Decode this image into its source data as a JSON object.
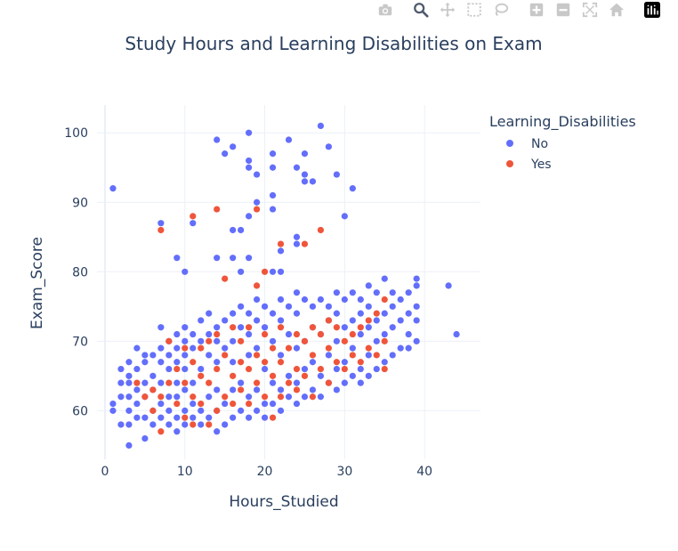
{
  "toolbar": {
    "buttons": [
      {
        "name": "camera-icon"
      },
      {
        "name": "zoom-icon"
      },
      {
        "name": "pan-icon"
      },
      {
        "name": "box-select-icon"
      },
      {
        "name": "lasso-select-icon"
      },
      {
        "name": "zoom-in-icon"
      },
      {
        "name": "zoom-out-icon"
      },
      {
        "name": "autoscale-icon"
      },
      {
        "name": "reset-axes-icon"
      },
      {
        "name": "plotly-logo-icon"
      }
    ]
  },
  "chart_data": {
    "type": "scatter",
    "title": "Study Hours and Learning Disabilities on Exam",
    "xlabel": "Hours_Studied",
    "ylabel": "Exam_Score",
    "xlim": [
      -1,
      47
    ],
    "ylim": [
      53,
      104
    ],
    "xticks": [
      0,
      10,
      20,
      30,
      40
    ],
    "yticks": [
      60,
      70,
      80,
      90,
      100
    ],
    "grid": true,
    "legend": {
      "title": "Learning_Disabilities",
      "placement": "right"
    },
    "series": [
      {
        "name": "No",
        "color": "#636efa",
        "points": [
          [
            1,
            92
          ],
          [
            1,
            61
          ],
          [
            1,
            60
          ],
          [
            2,
            58
          ],
          [
            2,
            62
          ],
          [
            2,
            64
          ],
          [
            2,
            66
          ],
          [
            3,
            55
          ],
          [
            3,
            58
          ],
          [
            3,
            60
          ],
          [
            3,
            62
          ],
          [
            3,
            64
          ],
          [
            3,
            65
          ],
          [
            3,
            67
          ],
          [
            4,
            59
          ],
          [
            4,
            61
          ],
          [
            4,
            63
          ],
          [
            4,
            66
          ],
          [
            4,
            69
          ],
          [
            5,
            56
          ],
          [
            5,
            59
          ],
          [
            5,
            62
          ],
          [
            5,
            64
          ],
          [
            5,
            67
          ],
          [
            5,
            68
          ],
          [
            6,
            58
          ],
          [
            6,
            60
          ],
          [
            6,
            63
          ],
          [
            6,
            65
          ],
          [
            6,
            68
          ],
          [
            7,
            59
          ],
          [
            7,
            61
          ],
          [
            7,
            64
          ],
          [
            7,
            67
          ],
          [
            7,
            69
          ],
          [
            7,
            72
          ],
          [
            7,
            87
          ],
          [
            8,
            58
          ],
          [
            8,
            60
          ],
          [
            8,
            62
          ],
          [
            8,
            66
          ],
          [
            8,
            68
          ],
          [
            8,
            70
          ],
          [
            9,
            57
          ],
          [
            9,
            59
          ],
          [
            9,
            62
          ],
          [
            9,
            64
          ],
          [
            9,
            67
          ],
          [
            9,
            69
          ],
          [
            9,
            71
          ],
          [
            9,
            82
          ],
          [
            10,
            58
          ],
          [
            10,
            60
          ],
          [
            10,
            63
          ],
          [
            10,
            66
          ],
          [
            10,
            68
          ],
          [
            10,
            70
          ],
          [
            10,
            72
          ],
          [
            10,
            80
          ],
          [
            11,
            59
          ],
          [
            11,
            61
          ],
          [
            11,
            64
          ],
          [
            11,
            69
          ],
          [
            11,
            71
          ],
          [
            11,
            87
          ],
          [
            12,
            58
          ],
          [
            12,
            60
          ],
          [
            12,
            66
          ],
          [
            12,
            70
          ],
          [
            12,
            73
          ],
          [
            13,
            59
          ],
          [
            13,
            62
          ],
          [
            13,
            68
          ],
          [
            13,
            71
          ],
          [
            13,
            74
          ],
          [
            14,
            57
          ],
          [
            14,
            60
          ],
          [
            14,
            63
          ],
          [
            14,
            67
          ],
          [
            14,
            70
          ],
          [
            14,
            72
          ],
          [
            14,
            99
          ],
          [
            14,
            82
          ],
          [
            15,
            58
          ],
          [
            15,
            61
          ],
          [
            15,
            69
          ],
          [
            15,
            73
          ],
          [
            15,
            97
          ],
          [
            16,
            59
          ],
          [
            16,
            63
          ],
          [
            16,
            67
          ],
          [
            16,
            70
          ],
          [
            16,
            74
          ],
          [
            16,
            98
          ],
          [
            16,
            86
          ],
          [
            16,
            82
          ],
          [
            17,
            60
          ],
          [
            17,
            64
          ],
          [
            17,
            72
          ],
          [
            17,
            75
          ],
          [
            17,
            86
          ],
          [
            17,
            80
          ],
          [
            18,
            59
          ],
          [
            18,
            62
          ],
          [
            18,
            68
          ],
          [
            18,
            71
          ],
          [
            18,
            74
          ],
          [
            18,
            100
          ],
          [
            18,
            96
          ],
          [
            18,
            95
          ],
          [
            18,
            88
          ],
          [
            18,
            82
          ],
          [
            19,
            60
          ],
          [
            19,
            63
          ],
          [
            19,
            69
          ],
          [
            19,
            73
          ],
          [
            19,
            76
          ],
          [
            19,
            94
          ],
          [
            19,
            90
          ],
          [
            20,
            59
          ],
          [
            20,
            61
          ],
          [
            20,
            66
          ],
          [
            20,
            72
          ],
          [
            20,
            75
          ],
          [
            21,
            61
          ],
          [
            21,
            64
          ],
          [
            21,
            70
          ],
          [
            21,
            74
          ],
          [
            21,
            97
          ],
          [
            21,
            95
          ],
          [
            21,
            91
          ],
          [
            21,
            89
          ],
          [
            21,
            80
          ],
          [
            22,
            60
          ],
          [
            22,
            63
          ],
          [
            22,
            68
          ],
          [
            22,
            73
          ],
          [
            22,
            76
          ],
          [
            22,
            83
          ],
          [
            22,
            80
          ],
          [
            23,
            62
          ],
          [
            23,
            65
          ],
          [
            23,
            71
          ],
          [
            23,
            75
          ],
          [
            23,
            99
          ],
          [
            24,
            61
          ],
          [
            24,
            64
          ],
          [
            24,
            69
          ],
          [
            24,
            74
          ],
          [
            24,
            77
          ],
          [
            24,
            95
          ],
          [
            24,
            85
          ],
          [
            24,
            84
          ],
          [
            25,
            62
          ],
          [
            25,
            66
          ],
          [
            25,
            70
          ],
          [
            25,
            76
          ],
          [
            25,
            97
          ],
          [
            25,
            94
          ],
          [
            25,
            93
          ],
          [
            26,
            63
          ],
          [
            26,
            67
          ],
          [
            26,
            72
          ],
          [
            26,
            75
          ],
          [
            26,
            93
          ],
          [
            27,
            62
          ],
          [
            27,
            65
          ],
          [
            27,
            71
          ],
          [
            27,
            76
          ],
          [
            27,
            101
          ],
          [
            28,
            64
          ],
          [
            28,
            68
          ],
          [
            28,
            73
          ],
          [
            28,
            75
          ],
          [
            28,
            98
          ],
          [
            29,
            63
          ],
          [
            29,
            66
          ],
          [
            29,
            70
          ],
          [
            29,
            74
          ],
          [
            29,
            77
          ],
          [
            29,
            94
          ],
          [
            30,
            64
          ],
          [
            30,
            67
          ],
          [
            30,
            72
          ],
          [
            30,
            76
          ],
          [
            30,
            88
          ],
          [
            31,
            65
          ],
          [
            31,
            69
          ],
          [
            31,
            73
          ],
          [
            31,
            77
          ],
          [
            31,
            92
          ],
          [
            32,
            64
          ],
          [
            32,
            66
          ],
          [
            32,
            71
          ],
          [
            32,
            74
          ],
          [
            32,
            76
          ],
          [
            33,
            65
          ],
          [
            33,
            68
          ],
          [
            33,
            72
          ],
          [
            33,
            75
          ],
          [
            33,
            78
          ],
          [
            34,
            66
          ],
          [
            34,
            70
          ],
          [
            34,
            73
          ],
          [
            34,
            77
          ],
          [
            35,
            67
          ],
          [
            35,
            71
          ],
          [
            35,
            74
          ],
          [
            35,
            79
          ],
          [
            36,
            68
          ],
          [
            36,
            72
          ],
          [
            36,
            75
          ],
          [
            36,
            77
          ],
          [
            37,
            69
          ],
          [
            37,
            73
          ],
          [
            37,
            76
          ],
          [
            38,
            69
          ],
          [
            38,
            71
          ],
          [
            38,
            74
          ],
          [
            38,
            77
          ],
          [
            39,
            70
          ],
          [
            39,
            73
          ],
          [
            39,
            75
          ],
          [
            39,
            78
          ],
          [
            39,
            79
          ],
          [
            43,
            78
          ],
          [
            44,
            71
          ]
        ]
      },
      {
        "name": "Yes",
        "color": "#ef553b",
        "points": [
          [
            4,
            64
          ],
          [
            5,
            62
          ],
          [
            6,
            60
          ],
          [
            6,
            63
          ],
          [
            7,
            57
          ],
          [
            7,
            62
          ],
          [
            7,
            86
          ],
          [
            8,
            64
          ],
          [
            8,
            70
          ],
          [
            9,
            61
          ],
          [
            9,
            66
          ],
          [
            10,
            59
          ],
          [
            10,
            64
          ],
          [
            10,
            69
          ],
          [
            11,
            58
          ],
          [
            11,
            62
          ],
          [
            11,
            67
          ],
          [
            11,
            88
          ],
          [
            12,
            61
          ],
          [
            12,
            65
          ],
          [
            12,
            69
          ],
          [
            13,
            58
          ],
          [
            13,
            64
          ],
          [
            13,
            70
          ],
          [
            14,
            60
          ],
          [
            14,
            66
          ],
          [
            14,
            71
          ],
          [
            14,
            89
          ],
          [
            15,
            62
          ],
          [
            15,
            68
          ],
          [
            15,
            79
          ],
          [
            16,
            61
          ],
          [
            16,
            65
          ],
          [
            16,
            72
          ],
          [
            17,
            63
          ],
          [
            17,
            67
          ],
          [
            17,
            70
          ],
          [
            18,
            61
          ],
          [
            18,
            66
          ],
          [
            18,
            72
          ],
          [
            19,
            64
          ],
          [
            19,
            68
          ],
          [
            19,
            78
          ],
          [
            19,
            89
          ],
          [
            20,
            62
          ],
          [
            20,
            67
          ],
          [
            20,
            71
          ],
          [
            20,
            80
          ],
          [
            21,
            59
          ],
          [
            21,
            65
          ],
          [
            21,
            69
          ],
          [
            22,
            62
          ],
          [
            22,
            67
          ],
          [
            22,
            72
          ],
          [
            22,
            84
          ],
          [
            23,
            64
          ],
          [
            23,
            69
          ],
          [
            24,
            63
          ],
          [
            24,
            66
          ],
          [
            24,
            71
          ],
          [
            25,
            65
          ],
          [
            25,
            70
          ],
          [
            25,
            84
          ],
          [
            26,
            62
          ],
          [
            26,
            68
          ],
          [
            26,
            72
          ],
          [
            27,
            66
          ],
          [
            27,
            71
          ],
          [
            27,
            86
          ],
          [
            28,
            64
          ],
          [
            28,
            69
          ],
          [
            28,
            73
          ],
          [
            29,
            67
          ],
          [
            29,
            72
          ],
          [
            30,
            66
          ],
          [
            30,
            70
          ],
          [
            31,
            68
          ],
          [
            31,
            71
          ],
          [
            32,
            67
          ],
          [
            32,
            72
          ],
          [
            33,
            69
          ],
          [
            33,
            73
          ],
          [
            34,
            68
          ],
          [
            34,
            74
          ],
          [
            35,
            66
          ],
          [
            35,
            70
          ],
          [
            35,
            76
          ]
        ]
      }
    ]
  }
}
